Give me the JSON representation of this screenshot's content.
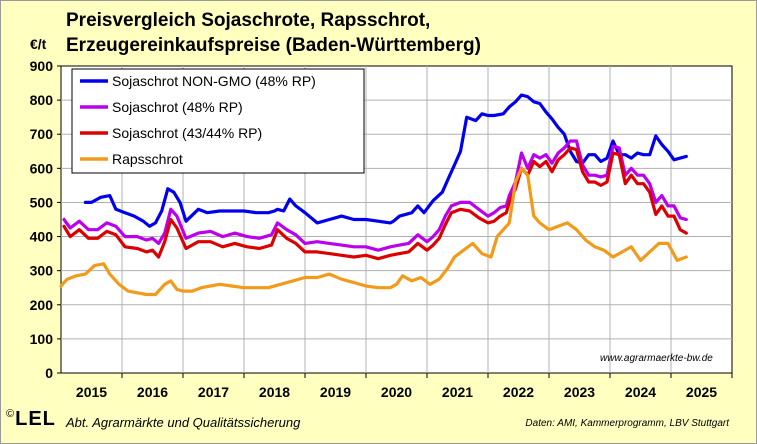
{
  "title": "Preisvergleich Sojaschrote, Rapsschrot, Erzeugereinkaufspreise (Baden-Württemberg)",
  "title_lines": [
    "Preisvergleich Sojaschrote, Rapsschrot,",
    "Erzeugereinkaufspreise (Baden-Württemberg)"
  ],
  "website": "www.agrarmaerkte-bw.de",
  "footer": {
    "logo_copyright": "©",
    "logo_text": "LEL",
    "department": "Abt. Agrarmärkte und Qualitätssicherung",
    "source": "Daten: AMI, Kammerprogramm, LBV Stuttgart"
  },
  "chart_data": {
    "type": "line",
    "ylabel": "€/t",
    "ylim": [
      0,
      900
    ],
    "yticks": [
      0,
      100,
      200,
      300,
      400,
      500,
      600,
      700,
      800,
      900
    ],
    "xlim": [
      2014.5,
      2025.5
    ],
    "xticks": [
      2015,
      2016,
      2017,
      2018,
      2019,
      2020,
      2021,
      2022,
      2023,
      2024,
      2025
    ],
    "grid": true,
    "legend_position": "top-left",
    "series": [
      {
        "name": "Sojaschrot NON-GMO (48% RP)",
        "color": "#0000ee",
        "x": [
          2014.9,
          2015.0,
          2015.15,
          2015.3,
          2015.4,
          2015.55,
          2015.7,
          2015.85,
          2015.95,
          2016.05,
          2016.15,
          2016.25,
          2016.35,
          2016.45,
          2016.55,
          2016.75,
          2016.9,
          2017.1,
          2017.3,
          2017.5,
          2017.7,
          2017.9,
          2018.0,
          2018.05,
          2018.15,
          2018.25,
          2018.35,
          2018.5,
          2018.7,
          2018.9,
          2019.0,
          2019.1,
          2019.3,
          2019.5,
          2019.7,
          2019.9,
          2019.95,
          2020.05,
          2020.15,
          2020.25,
          2020.35,
          2020.45,
          2020.6,
          2020.75,
          2020.85,
          2020.95,
          2021.05,
          2021.15,
          2021.3,
          2021.4,
          2021.5,
          2021.6,
          2021.75,
          2021.85,
          2021.95,
          2022.05,
          2022.15,
          2022.25,
          2022.35,
          2022.45,
          2022.55,
          2022.65,
          2022.75,
          2022.85,
          2022.95,
          2023.05,
          2023.15,
          2023.25,
          2023.35,
          2023.45,
          2023.55,
          2023.65,
          2023.75,
          2023.85,
          2023.95,
          2024.05,
          2024.15,
          2024.25,
          2024.35,
          2024.45,
          2024.55,
          2024.65,
          2024.75
        ],
        "values": [
          500,
          500,
          515,
          520,
          480,
          470,
          460,
          445,
          430,
          440,
          475,
          540,
          530,
          500,
          445,
          480,
          470,
          475,
          475,
          475,
          470,
          470,
          475,
          480,
          475,
          510,
          490,
          470,
          440,
          450,
          455,
          460,
          450,
          450,
          445,
          440,
          445,
          460,
          465,
          470,
          490,
          470,
          505,
          530,
          570,
          610,
          650,
          750,
          740,
          760,
          755,
          755,
          760,
          780,
          795,
          815,
          810,
          795,
          790,
          765,
          745,
          720,
          700,
          650,
          620,
          615,
          640,
          640,
          620,
          630,
          680,
          640,
          640,
          630,
          645,
          640,
          640,
          695,
          670,
          650,
          625,
          630,
          635
        ]
      },
      {
        "name": "Sojaschrot (48% RP)",
        "color": "#bb00ee",
        "x": [
          2014.55,
          2014.65,
          2014.8,
          2014.95,
          2015.1,
          2015.25,
          2015.4,
          2015.55,
          2015.75,
          2015.9,
          2016.0,
          2016.1,
          2016.2,
          2016.3,
          2016.4,
          2016.55,
          2016.75,
          2016.95,
          2017.15,
          2017.35,
          2017.55,
          2017.75,
          2017.95,
          2018.05,
          2018.2,
          2018.35,
          2018.5,
          2018.7,
          2018.9,
          2019.1,
          2019.3,
          2019.5,
          2019.7,
          2019.9,
          2020.05,
          2020.2,
          2020.35,
          2020.5,
          2020.6,
          2020.7,
          2020.8,
          2020.9,
          2021.05,
          2021.2,
          2021.35,
          2021.5,
          2021.6,
          2021.7,
          2021.8,
          2021.85,
          2021.95,
          2022.05,
          2022.15,
          2022.25,
          2022.35,
          2022.45,
          2022.55,
          2022.65,
          2022.75,
          2022.85,
          2022.95,
          2023.05,
          2023.15,
          2023.25,
          2023.35,
          2023.45,
          2023.55,
          2023.65,
          2023.75,
          2023.85,
          2023.95,
          2024.05,
          2024.15,
          2024.25,
          2024.35,
          2024.45,
          2024.55,
          2024.65,
          2024.75
        ],
        "values": [
          450,
          425,
          445,
          420,
          420,
          440,
          430,
          400,
          400,
          390,
          395,
          380,
          410,
          480,
          460,
          395,
          410,
          415,
          400,
          410,
          400,
          395,
          405,
          440,
          420,
          405,
          380,
          385,
          380,
          375,
          370,
          370,
          360,
          370,
          375,
          380,
          405,
          385,
          400,
          420,
          460,
          490,
          500,
          500,
          480,
          460,
          470,
          485,
          490,
          520,
          560,
          645,
          600,
          640,
          630,
          640,
          615,
          645,
          660,
          680,
          680,
          610,
          580,
          580,
          575,
          580,
          665,
          660,
          580,
          600,
          580,
          580,
          555,
          500,
          520,
          490,
          490,
          455,
          450
        ]
      },
      {
        "name": "Sojaschrot (43/44% RP)",
        "color": "#dd0000",
        "x": [
          2014.55,
          2014.65,
          2014.8,
          2014.95,
          2015.1,
          2015.25,
          2015.4,
          2015.55,
          2015.75,
          2015.9,
          2016.0,
          2016.1,
          2016.2,
          2016.3,
          2016.4,
          2016.55,
          2016.75,
          2016.95,
          2017.15,
          2017.35,
          2017.55,
          2017.75,
          2017.95,
          2018.05,
          2018.2,
          2018.35,
          2018.5,
          2018.7,
          2018.9,
          2019.1,
          2019.3,
          2019.5,
          2019.7,
          2019.9,
          2020.05,
          2020.2,
          2020.35,
          2020.5,
          2020.6,
          2020.7,
          2020.8,
          2020.9,
          2021.05,
          2021.2,
          2021.35,
          2021.5,
          2021.6,
          2021.7,
          2021.8,
          2021.85,
          2021.95,
          2022.05,
          2022.15,
          2022.25,
          2022.35,
          2022.45,
          2022.55,
          2022.65,
          2022.75,
          2022.85,
          2022.95,
          2023.05,
          2023.15,
          2023.25,
          2023.35,
          2023.45,
          2023.55,
          2023.65,
          2023.75,
          2023.85,
          2023.95,
          2024.05,
          2024.15,
          2024.25,
          2024.35,
          2024.45,
          2024.55,
          2024.65,
          2024.75
        ],
        "values": [
          430,
          400,
          420,
          395,
          395,
          415,
          405,
          370,
          365,
          355,
          360,
          340,
          385,
          450,
          425,
          365,
          385,
          385,
          370,
          380,
          370,
          365,
          375,
          420,
          395,
          380,
          355,
          355,
          350,
          345,
          340,
          345,
          335,
          345,
          350,
          355,
          380,
          360,
          375,
          395,
          435,
          470,
          480,
          475,
          455,
          440,
          445,
          460,
          470,
          500,
          540,
          600,
          580,
          620,
          605,
          620,
          590,
          625,
          640,
          660,
          655,
          590,
          560,
          560,
          550,
          560,
          645,
          640,
          555,
          580,
          555,
          555,
          530,
          465,
          490,
          460,
          460,
          420,
          410
        ]
      },
      {
        "name": "Rapsschrot",
        "color": "#f29b1a",
        "x": [
          2014.5,
          2014.6,
          2014.75,
          2014.9,
          2015.05,
          2015.2,
          2015.3,
          2015.45,
          2015.6,
          2015.75,
          2015.9,
          2016.05,
          2016.2,
          2016.3,
          2016.4,
          2016.5,
          2016.65,
          2016.8,
          2016.95,
          2017.1,
          2017.3,
          2017.5,
          2017.7,
          2017.9,
          2018.1,
          2018.3,
          2018.5,
          2018.7,
          2018.9,
          2019.1,
          2019.3,
          2019.5,
          2019.7,
          2019.9,
          2020.0,
          2020.1,
          2020.25,
          2020.4,
          2020.55,
          2020.7,
          2020.85,
          2020.95,
          2021.1,
          2021.25,
          2021.4,
          2021.55,
          2021.65,
          2021.75,
          2021.85,
          2021.95,
          2022.05,
          2022.15,
          2022.25,
          2022.35,
          2022.5,
          2022.65,
          2022.8,
          2022.95,
          2023.1,
          2023.25,
          2023.4,
          2023.55,
          2023.7,
          2023.85,
          2024.0,
          2024.15,
          2024.3,
          2024.45,
          2024.6,
          2024.75
        ],
        "values": [
          255,
          275,
          285,
          290,
          315,
          320,
          290,
          260,
          240,
          235,
          230,
          230,
          260,
          270,
          245,
          240,
          240,
          250,
          255,
          260,
          255,
          250,
          250,
          250,
          260,
          270,
          280,
          280,
          290,
          275,
          265,
          255,
          250,
          250,
          260,
          285,
          270,
          280,
          260,
          275,
          310,
          340,
          360,
          380,
          350,
          340,
          400,
          420,
          440,
          560,
          600,
          580,
          460,
          440,
          420,
          430,
          440,
          420,
          390,
          370,
          360,
          340,
          355,
          370,
          330,
          355,
          380,
          380,
          330,
          340
        ]
      }
    ]
  }
}
